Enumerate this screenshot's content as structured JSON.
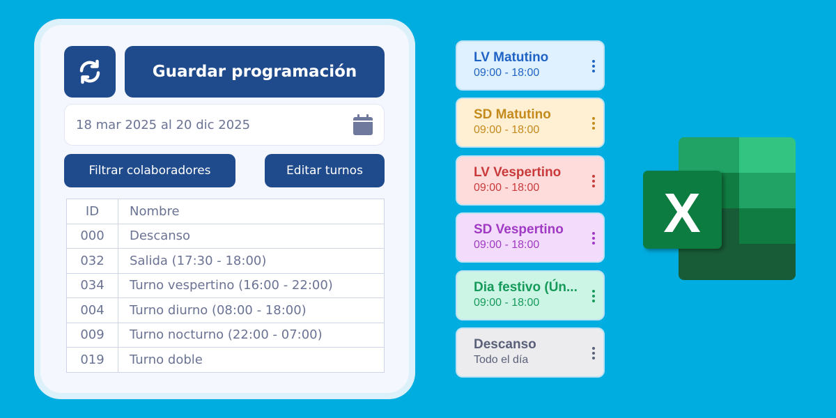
{
  "toolbar": {
    "refresh_icon": "refresh-icon",
    "save_label": "Guardar programación"
  },
  "date_range": {
    "value": "18 mar 2025 al 20 dic 2025",
    "icon": "calendar-icon"
  },
  "actions": {
    "filter_label": "Filtrar colaboradores",
    "edit_label": "Editar turnos"
  },
  "table": {
    "headers": [
      "ID",
      "Nombre"
    ],
    "rows": [
      [
        "000",
        "Descanso"
      ],
      [
        "032",
        "Salida (17:30 - 18:00)"
      ],
      [
        "034",
        "Turno vespertino (16:00 - 22:00)"
      ],
      [
        "004",
        "Turno diurno (08:00 - 18:00)"
      ],
      [
        "009",
        "Turno nocturno (22:00 - 07:00)"
      ],
      [
        "019",
        "Turno doble"
      ]
    ]
  },
  "shifts": [
    {
      "title": "LV Matutino",
      "subtitle": "09:00 - 18:00",
      "bg": "#dff0ff",
      "fg": "#1f63c4"
    },
    {
      "title": "SD Matutino",
      "subtitle": "09:00 - 18:00",
      "bg": "#fff0d4",
      "fg": "#c48a1c"
    },
    {
      "title": "LV Vespertino",
      "subtitle": "09:00 - 18:00",
      "bg": "#ffdcdc",
      "fg": "#c93a3a"
    },
    {
      "title": "SD Vespertino",
      "subtitle": "09:00 - 18:00",
      "bg": "#f3dcfb",
      "fg": "#a039c4"
    },
    {
      "title": "Dia festivo (Ún...",
      "subtitle": "09:00 - 18:00",
      "bg": "#cdf5e5",
      "fg": "#159a5a"
    },
    {
      "title": "Descanso",
      "subtitle": "Todo el día",
      "bg": "#ececee",
      "fg": "#5a6078"
    }
  ],
  "logo": {
    "name": "excel-logo",
    "letter": "X"
  }
}
